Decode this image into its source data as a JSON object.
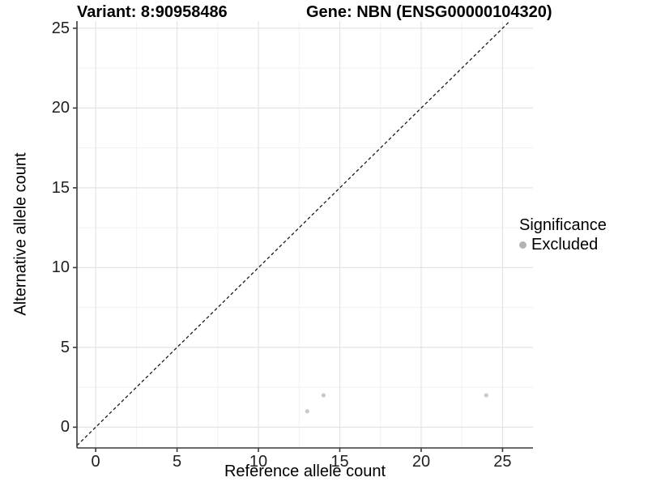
{
  "figure": {
    "background": "#ffffff"
  },
  "chart_data": {
    "type": "scatter",
    "titles": {
      "left": "Variant: 8:90958486",
      "right": "Gene: NBN (ENSG00000104320)"
    },
    "xlabel": "Reference allele count",
    "ylabel": "Alternative allele count",
    "xlim": [
      -1.15,
      26.87
    ],
    "ylim": [
      -1.3,
      25.45
    ],
    "xticks": [
      0,
      5,
      10,
      15,
      20,
      25
    ],
    "yticks": [
      0,
      5,
      10,
      15,
      20,
      25
    ],
    "x_tick_labels": [
      "0",
      "5",
      "10",
      "15",
      "20",
      "25"
    ],
    "y_tick_labels": [
      "0",
      "5",
      "10",
      "15",
      "20",
      "25"
    ],
    "grid": {
      "show_minor": true,
      "major_color": "#e4e4e4",
      "minor_color": "#f1f1f1"
    },
    "axis_color": "#3a3a3a",
    "tick_color": "#3a3a3a",
    "identity_line": {
      "show": true,
      "style": "dashed",
      "color": "#1a1a1a"
    },
    "series": [
      {
        "name": "Excluded",
        "color": "#c9c9c9",
        "marker": "circle",
        "marker_radius": 2.6,
        "points": [
          [
            13,
            1
          ],
          [
            14,
            2
          ],
          [
            24,
            2
          ]
        ]
      }
    ],
    "legend": {
      "position": "right",
      "title": "Significance",
      "items": [
        {
          "label": "Excluded",
          "color": "#b3b3b3",
          "marker": "circle"
        }
      ]
    }
  }
}
